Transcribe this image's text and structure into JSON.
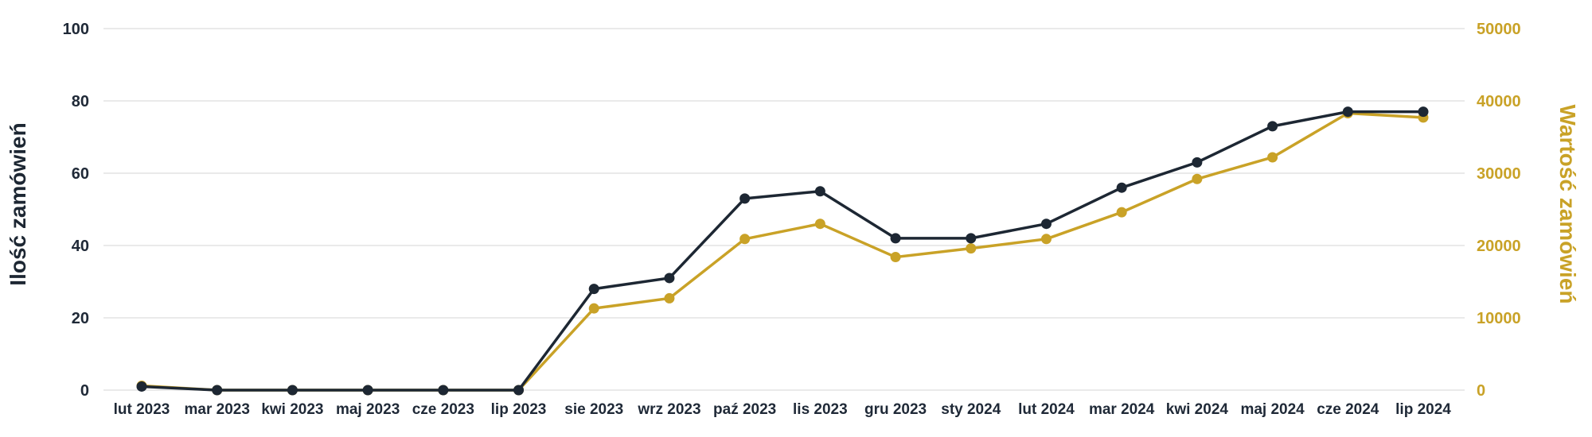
{
  "chart_data": {
    "type": "line",
    "categories": [
      "lut 2023",
      "mar 2023",
      "kwi 2023",
      "maj 2023",
      "cze 2023",
      "lip 2023",
      "sie 2023",
      "wrz 2023",
      "paź 2023",
      "lis 2023",
      "gru 2023",
      "sty 2024",
      "lut 2024",
      "mar 2024",
      "kwi 2024",
      "maj 2024",
      "cze 2024",
      "lip 2024"
    ],
    "y_left": {
      "label": "Ilość zamówień",
      "ylim": [
        0,
        100
      ],
      "ticks": [
        "0",
        "20",
        "40",
        "60",
        "80",
        "100"
      ],
      "color": "#1d2733"
    },
    "y_right": {
      "label": "Wartość zamówień",
      "ylim": [
        0,
        50000
      ],
      "ticks": [
        "0",
        "10000",
        "20000",
        "30000",
        "40000",
        "50000"
      ],
      "color": "#c9a227"
    },
    "series": [
      {
        "axis": "left",
        "color": "#1d2733",
        "values": [
          1,
          0,
          0,
          0,
          0,
          0,
          28,
          31,
          53,
          55,
          42,
          42,
          46,
          56,
          63,
          73,
          77,
          77
        ]
      },
      {
        "axis": "right",
        "color": "#c9a227",
        "values": [
          600,
          0,
          0,
          0,
          0,
          0,
          11300,
          12700,
          20900,
          23000,
          18400,
          19600,
          20900,
          24600,
          29200,
          32200,
          38300,
          37700
        ]
      }
    ],
    "grid": true,
    "legend": "none"
  }
}
